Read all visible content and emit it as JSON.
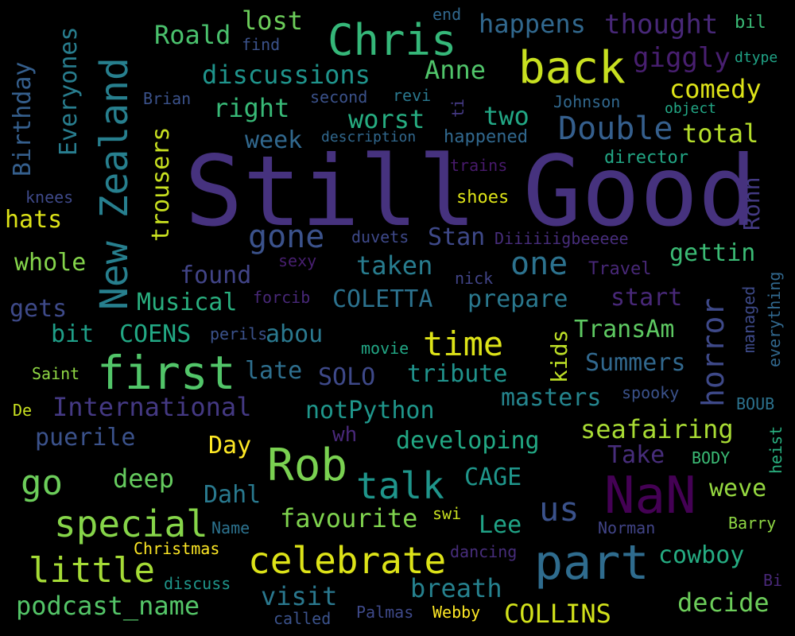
{
  "words": [
    {
      "text": "Still",
      "color": "#46327e"
    },
    {
      "text": "Good",
      "color": "#46327e"
    },
    {
      "text": "NaN",
      "color": "#440154"
    },
    {
      "text": "part",
      "color": "#2f6c8e"
    },
    {
      "text": "Rob",
      "color": "#7ad151"
    },
    {
      "text": "first",
      "color": "#52c569"
    },
    {
      "text": "back",
      "color": "#c8e020"
    },
    {
      "text": "Chris",
      "color": "#35b779"
    },
    {
      "text": "New Zealand",
      "color": "#277f8e"
    },
    {
      "text": "talk",
      "color": "#1f958b"
    },
    {
      "text": "special",
      "color": "#86d549"
    },
    {
      "text": "little",
      "color": "#a5db36"
    },
    {
      "text": "celebrate",
      "color": "#dde318"
    },
    {
      "text": "time",
      "color": "#dde318"
    },
    {
      "text": "go",
      "color": "#6ccd5a"
    },
    {
      "text": "us",
      "color": "#3b528b"
    },
    {
      "text": "one",
      "color": "#2c728e"
    },
    {
      "text": "horror",
      "color": "#3e4989"
    },
    {
      "text": "Double",
      "color": "#355f8d"
    },
    {
      "text": "gone",
      "color": "#3b528b"
    },
    {
      "text": "discussions",
      "color": "#1f948c"
    },
    {
      "text": "Roald",
      "color": "#4ac16d"
    },
    {
      "text": "lost",
      "color": "#6ccd5a"
    },
    {
      "text": "happens",
      "color": "#31688e"
    },
    {
      "text": "thought",
      "color": "#482878"
    },
    {
      "text": "giggly",
      "color": "#481f70"
    },
    {
      "text": "comedy",
      "color": "#dde318"
    },
    {
      "text": "total",
      "color": "#b5de2b"
    },
    {
      "text": "Anne",
      "color": "#50c46a"
    },
    {
      "text": "right",
      "color": "#38b977"
    },
    {
      "text": "worst",
      "color": "#26ad81"
    },
    {
      "text": "two",
      "color": "#22a785"
    },
    {
      "text": "trousers",
      "color": "#c8e020"
    },
    {
      "text": "Everyones",
      "color": "#287d8e"
    },
    {
      "text": "Birthday",
      "color": "#355f8d"
    },
    {
      "text": "week",
      "color": "#31688e"
    },
    {
      "text": "Ronn",
      "color": "#443a83"
    },
    {
      "text": "Musical",
      "color": "#29af7f"
    },
    {
      "text": "COLETTA",
      "color": "#2c728e"
    },
    {
      "text": "prepare",
      "color": "#2a788e"
    },
    {
      "text": "start",
      "color": "#482878"
    },
    {
      "text": "taken",
      "color": "#287c8e"
    },
    {
      "text": "Stan",
      "color": "#3e4989"
    },
    {
      "text": "gettin",
      "color": "#3bbb75"
    },
    {
      "text": "found",
      "color": "#414487"
    },
    {
      "text": "whole",
      "color": "#84d44b"
    },
    {
      "text": "gets",
      "color": "#3e4a89"
    },
    {
      "text": "hats",
      "color": "#dde318"
    },
    {
      "text": "bit",
      "color": "#1f9f88"
    },
    {
      "text": "COENS",
      "color": "#22a884"
    },
    {
      "text": "abou",
      "color": "#2a788e"
    },
    {
      "text": "kids",
      "color": "#bddf26"
    },
    {
      "text": "TransAm",
      "color": "#5ec962"
    },
    {
      "text": "Summers",
      "color": "#31688e"
    },
    {
      "text": "late",
      "color": "#2e6f8e"
    },
    {
      "text": "SOLO",
      "color": "#3e4989"
    },
    {
      "text": "tribute",
      "color": "#20938c"
    },
    {
      "text": "masters",
      "color": "#25858e"
    },
    {
      "text": "International",
      "color": "#443983"
    },
    {
      "text": "notPython",
      "color": "#1f968b"
    },
    {
      "text": "puerile",
      "color": "#3b528b"
    },
    {
      "text": "developing",
      "color": "#22a884"
    },
    {
      "text": "seafairing",
      "color": "#a8db34"
    },
    {
      "text": "Day",
      "color": "#fde725"
    },
    {
      "text": "deep",
      "color": "#65cb5e"
    },
    {
      "text": "CAGE",
      "color": "#1f968b"
    },
    {
      "text": "Take",
      "color": "#472d7b"
    },
    {
      "text": "Dahl",
      "color": "#29798e"
    },
    {
      "text": "favourite",
      "color": "#7fd34e"
    },
    {
      "text": "weve",
      "color": "#95d840"
    },
    {
      "text": "Lee",
      "color": "#20a386"
    },
    {
      "text": "cowboy",
      "color": "#25ac82"
    },
    {
      "text": "podcast_name",
      "color": "#54c568"
    },
    {
      "text": "visit",
      "color": "#2a788e"
    },
    {
      "text": "breath",
      "color": "#26818e"
    },
    {
      "text": "decide",
      "color": "#6ccd5a"
    },
    {
      "text": "COLLINS",
      "color": "#d2e21b"
    },
    {
      "text": "end",
      "color": "#31688e"
    },
    {
      "text": "bil",
      "color": "#3aba76"
    },
    {
      "text": "find",
      "color": "#3b528b"
    },
    {
      "text": "dtype",
      "color": "#20a386"
    },
    {
      "text": "Brian",
      "color": "#3b528b"
    },
    {
      "text": "second",
      "color": "#3b528b"
    },
    {
      "text": "revi",
      "color": "#2a788e"
    },
    {
      "text": "ti",
      "color": "#443983"
    },
    {
      "text": "Johnson",
      "color": "#31688e"
    },
    {
      "text": "object",
      "color": "#22a785"
    },
    {
      "text": "description",
      "color": "#31688e"
    },
    {
      "text": "happened",
      "color": "#31688e"
    },
    {
      "text": "director",
      "color": "#22a785"
    },
    {
      "text": "trains",
      "color": "#481a6c"
    },
    {
      "text": "shoes",
      "color": "#dde318"
    },
    {
      "text": "knees",
      "color": "#3e4989"
    },
    {
      "text": "duvets",
      "color": "#3e4989"
    },
    {
      "text": "Diiiiiigbeeeee",
      "color": "#472d7b"
    },
    {
      "text": "sexy",
      "color": "#481f70"
    },
    {
      "text": "Travel",
      "color": "#482878"
    },
    {
      "text": "nick",
      "color": "#414487"
    },
    {
      "text": "forcib",
      "color": "#482878"
    },
    {
      "text": "perils",
      "color": "#3b528b"
    },
    {
      "text": "movie",
      "color": "#22a785"
    },
    {
      "text": "everything",
      "color": "#31688e"
    },
    {
      "text": "managed",
      "color": "#3e4a89"
    },
    {
      "text": "Saint",
      "color": "#8fd744"
    },
    {
      "text": "spooky",
      "color": "#3b528b"
    },
    {
      "text": "De",
      "color": "#c8e020"
    },
    {
      "text": "BOUB",
      "color": "#2c728e"
    },
    {
      "text": "heist",
      "color": "#29af7f"
    },
    {
      "text": "wh",
      "color": "#482878"
    },
    {
      "text": "BODY",
      "color": "#3bbb75"
    },
    {
      "text": "swi",
      "color": "#c8e020"
    },
    {
      "text": "Name",
      "color": "#2c728e"
    },
    {
      "text": "Norman",
      "color": "#414487"
    },
    {
      "text": "Barry",
      "color": "#8fd744"
    },
    {
      "text": "Christmas",
      "color": "#fde725"
    },
    {
      "text": "dancing",
      "color": "#472d7b"
    },
    {
      "text": "discuss",
      "color": "#1f968b"
    },
    {
      "text": "Bi",
      "color": "#482878"
    },
    {
      "text": "called",
      "color": "#3b528b"
    },
    {
      "text": "Palmas",
      "color": "#3e4989"
    },
    {
      "text": "Webby",
      "color": "#fde725"
    }
  ]
}
